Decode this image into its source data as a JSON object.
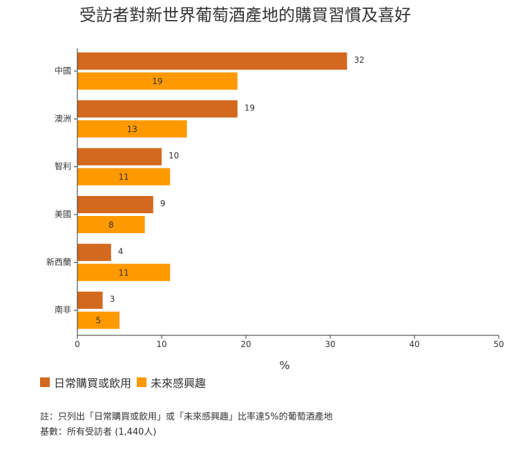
{
  "title": "受訪者對新世界葡萄酒產地的購買習慣及喜好",
  "notes": {
    "note": "註：只列出「日常購買或飲用」或「未來感興趣」比率達5%的葡萄酒產地",
    "base": "基數：所有受訪者 (1,440人)"
  },
  "chart_data": {
    "type": "bar",
    "orientation": "horizontal",
    "title": "受訪者對新世界葡萄酒產地的購買習慣及喜好",
    "xlabel": "%",
    "ylabel": "",
    "xlim": [
      0,
      50
    ],
    "xticks": [
      0,
      10,
      20,
      30,
      40,
      50
    ],
    "categories": [
      "中國",
      "澳洲",
      "智利",
      "美國",
      "新西蘭",
      "南非"
    ],
    "series": [
      {
        "name": "日常購買或飲用",
        "color": "#d2691e",
        "values": [
          32,
          19,
          10,
          9,
          4,
          3
        ]
      },
      {
        "name": "未來感興趣",
        "color": "#ff9900",
        "values": [
          19,
          13,
          11,
          8,
          11,
          5
        ]
      }
    ],
    "grid": false,
    "legend": "bottom-left"
  }
}
